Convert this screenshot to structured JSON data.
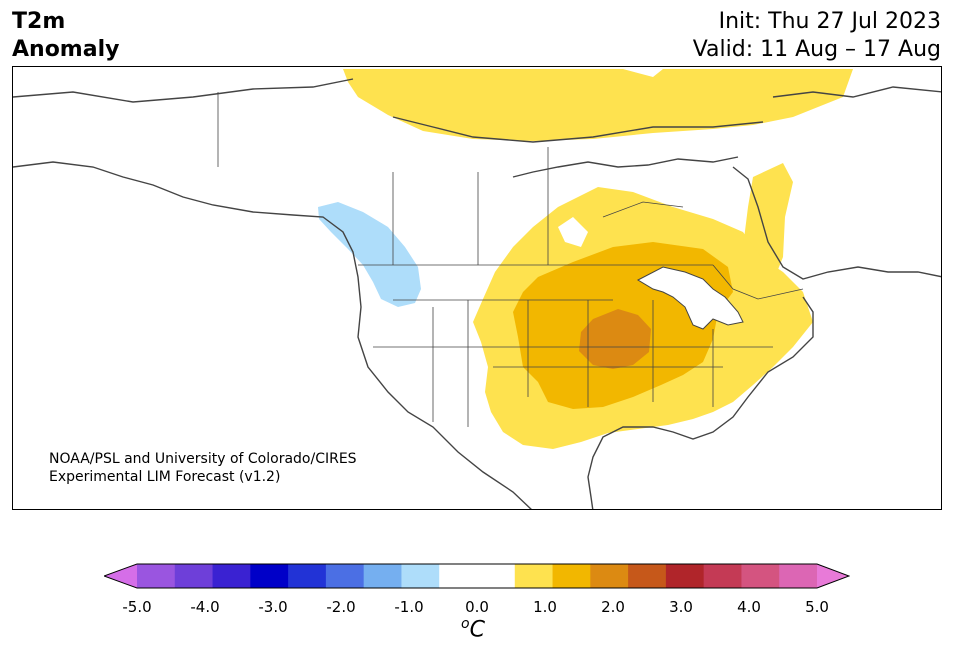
{
  "header": {
    "title_line1": "T2m",
    "title_line2": "Anomaly",
    "init": "Init: Thu 27 Jul 2023",
    "valid": "Valid: 11 Aug – 17 Aug"
  },
  "credit": {
    "line1": "NOAA/PSL and University of Colorado/CIRES",
    "line2": "Experimental LIM Forecast (v1.2)"
  },
  "colorbar": {
    "unit_sup": "o",
    "unit": "C",
    "ticks": [
      "-5.0",
      "-4.0",
      "-3.0",
      "-2.0",
      "-1.0",
      "0.0",
      "1.0",
      "2.0",
      "3.0",
      "4.0",
      "5.0"
    ],
    "colors": [
      "#d56ee8",
      "#9a55e0",
      "#6e3fd9",
      "#3a22d2",
      "#0000c8",
      "#2233d6",
      "#4b6fe4",
      "#75aff0",
      "#aeddfa",
      "#ffffff",
      "#ffffff",
      "#fee24f",
      "#f2b700",
      "#dc8a12",
      "#c6581a",
      "#b0252a",
      "#c43a55",
      "#d45480",
      "#dc66b4",
      "#e87ad8"
    ]
  },
  "map": {
    "colors": {
      "warm1": "#fee24f",
      "warm2": "#f2b700",
      "warm3": "#dc8a12",
      "cool1": "#aeddfa",
      "coast": "#444444"
    }
  }
}
